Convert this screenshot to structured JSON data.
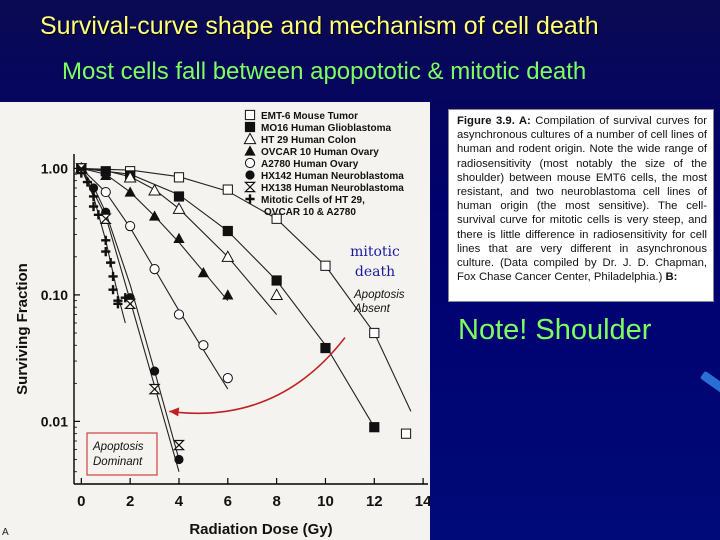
{
  "slide": {
    "title": "Survival-curve shape and mechanism of cell death",
    "subtitle": "Most cells fall between apopototic & mitotic death",
    "note": "Note! Shoulder",
    "scan_letter": "A"
  },
  "caption": {
    "figure_label": "Figure 3.9. A:",
    "text": "Compilation of survival curves for asynchronous cultures of a number of cell lines of human and rodent origin. Note the wide range of radiosensitivity (most notably the size of the shoulder) between mouse EMT6 cells, the most resistant, and two neuroblastoma cell lines of human origin (the most sensitive). The cell-survival curve for mitotic cells is very steep, and there is little difference in radiosensitivity for cell lines that are very different in asynchronous culture. (Data compiled by Dr. J. D. Chapman, Fox Chase Cancer Center, Philadelphia.)",
    "tail_label": "B:"
  },
  "colors": {
    "title": "#ffff7a",
    "subtitle": "#7dff5e",
    "background": "#00006e",
    "apoptosis_box": "#d04040",
    "arrow": "#c02020",
    "annotation": "#1a1aa0"
  },
  "chart_data": {
    "type": "scatter",
    "xlabel": "Radiation Dose (Gy)",
    "ylabel": "Surviving Fraction",
    "x_ticks": [
      0,
      2,
      4,
      6,
      8,
      10,
      12,
      14
    ],
    "y_ticks": [
      {
        "value": 1.0,
        "label": "1.00"
      },
      {
        "value": 0.1,
        "label": "0.10"
      },
      {
        "value": 0.01,
        "label": "0.01"
      }
    ],
    "xlim": [
      -0.3,
      14.2
    ],
    "ylim": [
      0.0032,
      1.3
    ],
    "y_scale": "log",
    "legend_position": "top-right",
    "annotations": {
      "mitotic_death": [
        "mitotic",
        "death"
      ],
      "apoptosis_absent": [
        "Apoptosis",
        "Absent"
      ],
      "apoptosis_dominant": [
        "Apoptosis",
        "Dominant"
      ]
    },
    "series": [
      {
        "name": "EMT-6 Mouse Tumor",
        "marker": "square-open",
        "points": [
          [
            0,
            1.0
          ],
          [
            2,
            0.95
          ],
          [
            4,
            0.85
          ],
          [
            6,
            0.68
          ],
          [
            8,
            0.4
          ],
          [
            10,
            0.17
          ],
          [
            12,
            0.05
          ],
          [
            13.3,
            0.008
          ]
        ]
      },
      {
        "name": "MO16 Human Glioblastoma",
        "marker": "square-filled",
        "points": [
          [
            0,
            1.0
          ],
          [
            1.0,
            0.95
          ],
          [
            2,
            0.88
          ],
          [
            4,
            0.6
          ],
          [
            6,
            0.32
          ],
          [
            8,
            0.13
          ],
          [
            10,
            0.038
          ],
          [
            12,
            0.009
          ]
        ]
      },
      {
        "name": "HT 29 Human Colon",
        "marker": "triangle-open",
        "points": [
          [
            0,
            1.0
          ],
          [
            2,
            0.85
          ],
          [
            3,
            0.67
          ],
          [
            4,
            0.48
          ],
          [
            6,
            0.2
          ],
          [
            8,
            0.1
          ]
        ]
      },
      {
        "name": "OVCAR 10 Human Ovary",
        "marker": "triangle-filled",
        "points": [
          [
            0,
            1.0
          ],
          [
            1.0,
            0.88
          ],
          [
            2,
            0.65
          ],
          [
            3,
            0.42
          ],
          [
            4,
            0.28
          ],
          [
            5,
            0.15
          ],
          [
            6,
            0.1
          ]
        ]
      },
      {
        "name": "A2780 Human Ovary",
        "marker": "circle-open",
        "points": [
          [
            0,
            1.0
          ],
          [
            1,
            0.65
          ],
          [
            2,
            0.35
          ],
          [
            3,
            0.16
          ],
          [
            4,
            0.07
          ],
          [
            5,
            0.04
          ],
          [
            6,
            0.022
          ]
        ]
      },
      {
        "name": "HX142 Human Neuroblastoma",
        "marker": "circle-filled",
        "points": [
          [
            0,
            1.0
          ],
          [
            0.5,
            0.7
          ],
          [
            1,
            0.45
          ],
          [
            2,
            0.095
          ],
          [
            3,
            0.025
          ],
          [
            4,
            0.005
          ]
        ]
      },
      {
        "name": "HX138 Human Neuroblastoma",
        "marker": "hourglass",
        "points": [
          [
            0,
            1.0
          ],
          [
            1,
            0.4
          ],
          [
            2,
            0.085
          ],
          [
            3,
            0.018
          ],
          [
            4,
            0.0065
          ]
        ]
      },
      {
        "name": "Mitotic Cells of HT 29, OVCAR 10 & A2780",
        "marker": "plus",
        "points": [
          [
            0,
            0.92
          ],
          [
            0.25,
            0.78
          ],
          [
            0.5,
            0.6
          ],
          [
            0.5,
            0.5
          ],
          [
            0.7,
            0.43
          ],
          [
            1,
            0.27
          ],
          [
            1,
            0.22
          ],
          [
            1.2,
            0.18
          ],
          [
            1.3,
            0.14
          ],
          [
            1.3,
            0.11
          ],
          [
            1.5,
            0.09
          ],
          [
            1.5,
            0.085
          ],
          [
            1.8,
            0.095
          ]
        ]
      }
    ],
    "curves": [
      {
        "series": "EMT-6 Mouse Tumor",
        "points": [
          [
            0,
            1.0
          ],
          [
            2,
            0.97
          ],
          [
            4,
            0.86
          ],
          [
            6,
            0.66
          ],
          [
            8,
            0.4
          ],
          [
            10,
            0.17
          ],
          [
            12,
            0.05
          ],
          [
            13.5,
            0.012
          ]
        ]
      },
      {
        "series": "MO16 Human Glioblastoma",
        "points": [
          [
            0,
            1.0
          ],
          [
            2,
            0.9
          ],
          [
            4,
            0.62
          ],
          [
            6,
            0.32
          ],
          [
            8,
            0.13
          ],
          [
            10,
            0.04
          ],
          [
            12,
            0.009
          ]
        ]
      },
      {
        "series": "HT 29 Human Colon",
        "points": [
          [
            0,
            1.0
          ],
          [
            1,
            0.96
          ],
          [
            2,
            0.86
          ],
          [
            3,
            0.68
          ],
          [
            4,
            0.48
          ],
          [
            6,
            0.2
          ],
          [
            8,
            0.07
          ]
        ]
      },
      {
        "series": "OVCAR 10 Human Ovary",
        "points": [
          [
            0,
            1.0
          ],
          [
            1,
            0.9
          ],
          [
            2,
            0.65
          ],
          [
            3,
            0.42
          ],
          [
            4,
            0.26
          ],
          [
            6,
            0.09
          ]
        ]
      },
      {
        "series": "A2780 Human Ovary",
        "points": [
          [
            0,
            1.0
          ],
          [
            1,
            0.65
          ],
          [
            2,
            0.34
          ],
          [
            3,
            0.16
          ],
          [
            4,
            0.075
          ],
          [
            6,
            0.018
          ]
        ]
      },
      {
        "series": "HX142 Human Neuroblastoma",
        "points": [
          [
            0,
            1.0
          ],
          [
            0.5,
            0.72
          ],
          [
            1,
            0.45
          ],
          [
            2,
            0.12
          ],
          [
            3,
            0.025
          ],
          [
            4,
            0.005
          ]
        ]
      },
      {
        "series": "HX138 Human Neuroblastoma",
        "points": [
          [
            0,
            1.0
          ],
          [
            1,
            0.42
          ],
          [
            2,
            0.09
          ],
          [
            3,
            0.019
          ],
          [
            4,
            0.004
          ]
        ]
      },
      {
        "series": "Mitotic Cells of HT 29, OVCAR 10 & A2780",
        "points": [
          [
            0,
            1.0
          ],
          [
            0.5,
            0.6
          ],
          [
            1,
            0.27
          ],
          [
            1.5,
            0.1
          ],
          [
            1.8,
            0.06
          ]
        ]
      }
    ],
    "arrow": {
      "from": [
        10.8,
        0.046
      ],
      "to": [
        3.6,
        0.012
      ]
    }
  }
}
